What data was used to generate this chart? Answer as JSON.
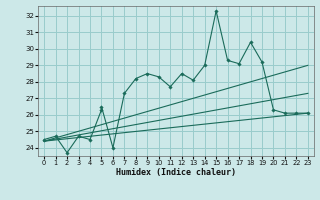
{
  "bg_color": "#cce8e8",
  "grid_color": "#99cccc",
  "line_color": "#1a6b5a",
  "xlabel": "Humidex (Indice chaleur)",
  "ylabel_ticks": [
    24,
    25,
    26,
    27,
    28,
    29,
    30,
    31,
    32
  ],
  "xticks": [
    0,
    1,
    2,
    3,
    4,
    5,
    6,
    7,
    8,
    9,
    10,
    11,
    12,
    13,
    14,
    15,
    16,
    17,
    18,
    19,
    20,
    21,
    22,
    23
  ],
  "xlim": [
    -0.5,
    23.5
  ],
  "ylim": [
    23.5,
    32.6
  ],
  "main_x": [
    0,
    1,
    2,
    3,
    4,
    5,
    5,
    6,
    7,
    8,
    9,
    10,
    11,
    12,
    13,
    14,
    15,
    16,
    17,
    18,
    19,
    20,
    21,
    22,
    23
  ],
  "main_y": [
    24.5,
    24.7,
    23.7,
    24.7,
    24.5,
    26.3,
    26.5,
    24.0,
    27.3,
    28.2,
    28.5,
    28.3,
    27.7,
    28.5,
    28.1,
    29.0,
    32.3,
    29.3,
    29.1,
    30.4,
    29.2,
    26.3,
    26.1,
    26.1,
    26.1
  ],
  "line1_x": [
    0,
    23
  ],
  "line1_y": [
    24.4,
    29.0
  ],
  "line2_x": [
    0,
    23
  ],
  "line2_y": [
    24.4,
    26.1
  ],
  "line3_x": [
    0,
    23
  ],
  "line3_y": [
    24.4,
    27.3
  ]
}
